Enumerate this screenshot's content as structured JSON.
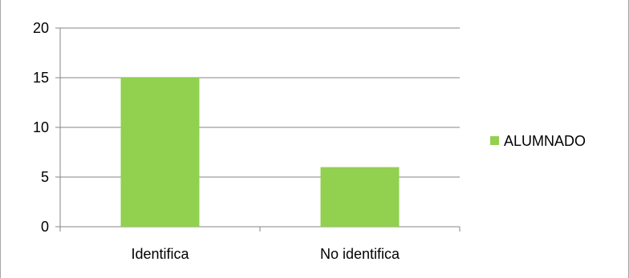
{
  "chart_data": {
    "type": "bar",
    "categories": [
      "Identifica",
      "No identifica"
    ],
    "series": [
      {
        "name": "ALUMNADO",
        "values": [
          15,
          6
        ],
        "color": "#92d050"
      }
    ],
    "ylim": [
      0,
      20
    ],
    "yticks": [
      0,
      5,
      10,
      15,
      20
    ],
    "grid": true,
    "legend": "right"
  }
}
